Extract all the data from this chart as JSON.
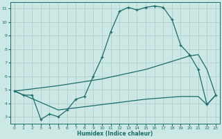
{
  "xlabel": "Humidex (Indice chaleur)",
  "background_color": "#cce8e5",
  "grid_color": "#aaccca",
  "line_color": "#1a6b6b",
  "xlim": [
    -0.5,
    23.5
  ],
  "ylim": [
    2.5,
    11.5
  ],
  "xticks": [
    0,
    1,
    2,
    3,
    4,
    5,
    6,
    7,
    8,
    9,
    10,
    11,
    12,
    13,
    14,
    15,
    16,
    17,
    18,
    19,
    20,
    21,
    22,
    23
  ],
  "yticks": [
    3,
    4,
    5,
    6,
    7,
    8,
    9,
    10,
    11
  ],
  "line1_x": [
    0,
    1,
    2,
    3,
    4,
    5,
    6,
    7,
    8,
    9,
    10,
    11,
    12,
    13,
    14,
    15,
    16,
    17,
    18,
    19,
    20,
    21,
    22,
    23
  ],
  "line1_y": [
    4.9,
    4.6,
    4.6,
    2.8,
    3.2,
    3.0,
    3.5,
    4.3,
    4.5,
    6.0,
    7.4,
    9.3,
    10.8,
    11.1,
    10.9,
    11.1,
    11.2,
    11.1,
    10.2,
    8.3,
    7.6,
    6.5,
    3.9,
    4.6
  ],
  "line2_x": [
    0,
    5,
    10,
    15,
    19,
    20,
    21,
    22,
    23
  ],
  "line2_y": [
    4.9,
    5.3,
    5.8,
    6.5,
    7.3,
    7.5,
    7.6,
    6.5,
    4.6
  ],
  "line3_x": [
    0,
    5,
    10,
    15,
    19,
    20,
    21,
    22,
    23
  ],
  "line3_y": [
    4.9,
    3.5,
    3.9,
    4.3,
    4.5,
    4.5,
    4.5,
    3.9,
    4.6
  ]
}
